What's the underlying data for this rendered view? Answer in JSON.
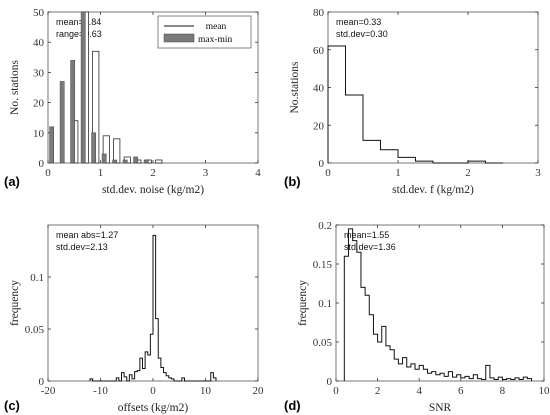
{
  "chart_data": [
    {
      "panel": "(a)",
      "type": "bar",
      "xlabel": "std.dev. noise (kg/m2)",
      "ylabel": "No. stations",
      "xlim": [
        0,
        4
      ],
      "ylim": [
        0,
        50
      ],
      "xticks": [
        0,
        1,
        2,
        3,
        4
      ],
      "yticks": [
        0,
        10,
        20,
        30,
        40,
        50
      ],
      "grid": false,
      "legend_position": "top-right",
      "annotations": [
        "mean=0.84",
        "range=0.63"
      ],
      "bin_width": 0.2,
      "series": [
        {
          "name": "mean",
          "style": "outline",
          "x": [
            0.3,
            0.5,
            0.7,
            0.9,
            1.1,
            1.3,
            1.5,
            1.7,
            1.9,
            2.1,
            2.3,
            2.5,
            2.7,
            2.9,
            3.1
          ],
          "values": [
            0,
            14,
            50,
            37,
            9,
            8,
            2,
            1,
            1,
            1,
            0,
            0,
            0,
            0,
            0
          ]
        },
        {
          "name": "max-min",
          "style": "filled",
          "x": [
            0.1,
            0.3,
            0.5,
            0.7,
            0.9,
            1.1,
            1.3,
            1.5,
            1.7,
            1.9,
            2.1,
            2.3,
            2.5,
            2.7,
            2.9,
            3.1
          ],
          "values": [
            12,
            27,
            34,
            50,
            10,
            3,
            1,
            1,
            2,
            1,
            0,
            0,
            0,
            0,
            0,
            0
          ]
        }
      ]
    },
    {
      "panel": "(b)",
      "type": "line",
      "xlabel": "std.dev. f (kg/m2)",
      "ylabel": "No.stations",
      "xlim": [
        0,
        3
      ],
      "ylim": [
        0,
        80
      ],
      "xticks": [
        0,
        1,
        2,
        3
      ],
      "yticks": [
        0,
        20,
        40,
        60,
        80
      ],
      "grid": false,
      "annotations": [
        "mean=0.33",
        "std.dev=0.30"
      ],
      "bin_edges": [
        0,
        0.25,
        0.5,
        0.75,
        1.0,
        1.25,
        1.5,
        1.75,
        2.0,
        2.25,
        2.5
      ],
      "counts": [
        62,
        36,
        12,
        7,
        3,
        1,
        0,
        0,
        1,
        0
      ]
    },
    {
      "panel": "(c)",
      "type": "line",
      "xlabel": "offsets (kg/m2)",
      "ylabel": "frequency",
      "xlim": [
        -20,
        20
      ],
      "ylim": [
        0,
        0.15
      ],
      "xticks": [
        -20,
        -10,
        0,
        10,
        20
      ],
      "yticks": [
        0,
        0.05,
        0.1
      ],
      "grid": false,
      "annotations": [
        "mean abs=1.27",
        "std.dev=2.13"
      ],
      "bin_edges_start": -12,
      "bin_width": 0.5,
      "counts": [
        0.002,
        0,
        0,
        0,
        0,
        0,
        0,
        0,
        0,
        0,
        0.003,
        0,
        0.008,
        0.004,
        0,
        0.006,
        0.002,
        0.009,
        0.01,
        0.022,
        0.012,
        0.028,
        0.025,
        0.045,
        0.14,
        0.06,
        0.022,
        0.013,
        0.008,
        0.005,
        0.003,
        0.002,
        0,
        0,
        0,
        0.003,
        0,
        0,
        0,
        0,
        0,
        0,
        0,
        0,
        0,
        0,
        0.008,
        0.003
      ]
    },
    {
      "panel": "(d)",
      "type": "line",
      "xlabel": "SNR",
      "ylabel": "frequency",
      "xlim": [
        0,
        10
      ],
      "ylim": [
        0,
        0.2
      ],
      "xticks": [
        0,
        2,
        4,
        6,
        8,
        10
      ],
      "yticks": [
        0,
        0.05,
        0.1,
        0.15,
        0.2
      ],
      "grid": false,
      "annotations": [
        "mean=1.55",
        "std.dev=1.36"
      ],
      "bin_edges_start": 0.4,
      "bin_width": 0.2,
      "counts": [
        0.16,
        0.195,
        0.18,
        0.165,
        0.12,
        0.11,
        0.085,
        0.06,
        0.05,
        0.07,
        0.045,
        0.04,
        0.028,
        0.022,
        0.03,
        0.018,
        0.022,
        0.015,
        0.02,
        0.015,
        0.01,
        0.012,
        0.008,
        0.01,
        0.006,
        0.012,
        0.005,
        0.008,
        0.004,
        0.006,
        0.003,
        0.008,
        0.003,
        0.002,
        0.02,
        0.004,
        0.002,
        0.005,
        0.002,
        0.003,
        0.002,
        0.004,
        0.002,
        0.005,
        0.003
      ]
    }
  ],
  "colors": {
    "axis": "#333333",
    "frame": "#555555",
    "line": "#111111",
    "filled_bar": "#7a7a7a",
    "outline_bar_fill": "#ffffff"
  }
}
